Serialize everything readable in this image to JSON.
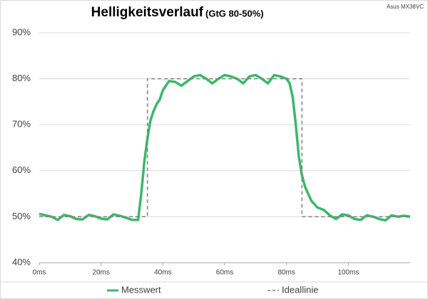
{
  "chart_data": {
    "type": "line",
    "title": "Helligkeitsverlauf",
    "subtitle": "(GtG 80-50%)",
    "annotation": "Asus MX38VC",
    "xlim": [
      0,
      120
    ],
    "xticks": [
      {
        "value": 0,
        "label": "0ms"
      },
      {
        "value": 20,
        "label": "20ms"
      },
      {
        "value": 40,
        "label": "40ms"
      },
      {
        "value": 60,
        "label": "60ms"
      },
      {
        "value": 80,
        "label": "80ms"
      },
      {
        "value": 100,
        "label": "100ms"
      }
    ],
    "ylim": [
      40,
      90
    ],
    "yticks": [
      {
        "value": 40,
        "label": "40%"
      },
      {
        "value": 50,
        "label": "50%"
      },
      {
        "value": 60,
        "label": "60%"
      },
      {
        "value": 70,
        "label": "70%"
      },
      {
        "value": 80,
        "label": "80%"
      },
      {
        "value": 90,
        "label": "90%"
      }
    ],
    "grid": true,
    "legend": "bottom",
    "series": [
      {
        "name": "Messwert",
        "color": "#3cb86a",
        "dash": false,
        "x": [
          0,
          2,
          4,
          6,
          8,
          10,
          12,
          14,
          16,
          18,
          20,
          22,
          24,
          26,
          28,
          30,
          32,
          33,
          34,
          35,
          36,
          37,
          38,
          39,
          40,
          42,
          44,
          46,
          48,
          50,
          52,
          54,
          56,
          58,
          60,
          62,
          64,
          66,
          68,
          70,
          72,
          74,
          76,
          78,
          80,
          81,
          82,
          83,
          84,
          85,
          86,
          87,
          88,
          90,
          92,
          94,
          96,
          98,
          100,
          102,
          104,
          106,
          108,
          110,
          112,
          114,
          116,
          118,
          120
        ],
        "values": [
          50.6,
          50.3,
          50,
          49.3,
          50.4,
          50.1,
          49.5,
          49.4,
          50.4,
          50.1,
          49.6,
          49.4,
          50.5,
          50.2,
          49.8,
          49.3,
          49.3,
          55,
          62,
          67,
          71,
          73,
          74.5,
          75.5,
          77.5,
          79.5,
          79.3,
          78.5,
          79.5,
          80.5,
          80.8,
          80,
          79,
          80,
          80.8,
          80.5,
          80,
          79,
          80.5,
          80.8,
          80,
          79,
          80.8,
          80.5,
          80,
          79,
          76,
          70,
          63,
          59,
          56.5,
          55,
          53.5,
          52,
          51.5,
          50.3,
          49.5,
          50.5,
          50.3,
          49.5,
          49.3,
          50.3,
          50,
          49.5,
          49.2,
          50.3,
          50,
          50.2,
          50
        ]
      },
      {
        "name": "Ideallinie",
        "color": "#7f7f7f",
        "dash": true,
        "x": [
          0,
          35,
          35,
          85,
          85,
          120
        ],
        "values": [
          50,
          50,
          80,
          80,
          50,
          50
        ]
      }
    ]
  }
}
